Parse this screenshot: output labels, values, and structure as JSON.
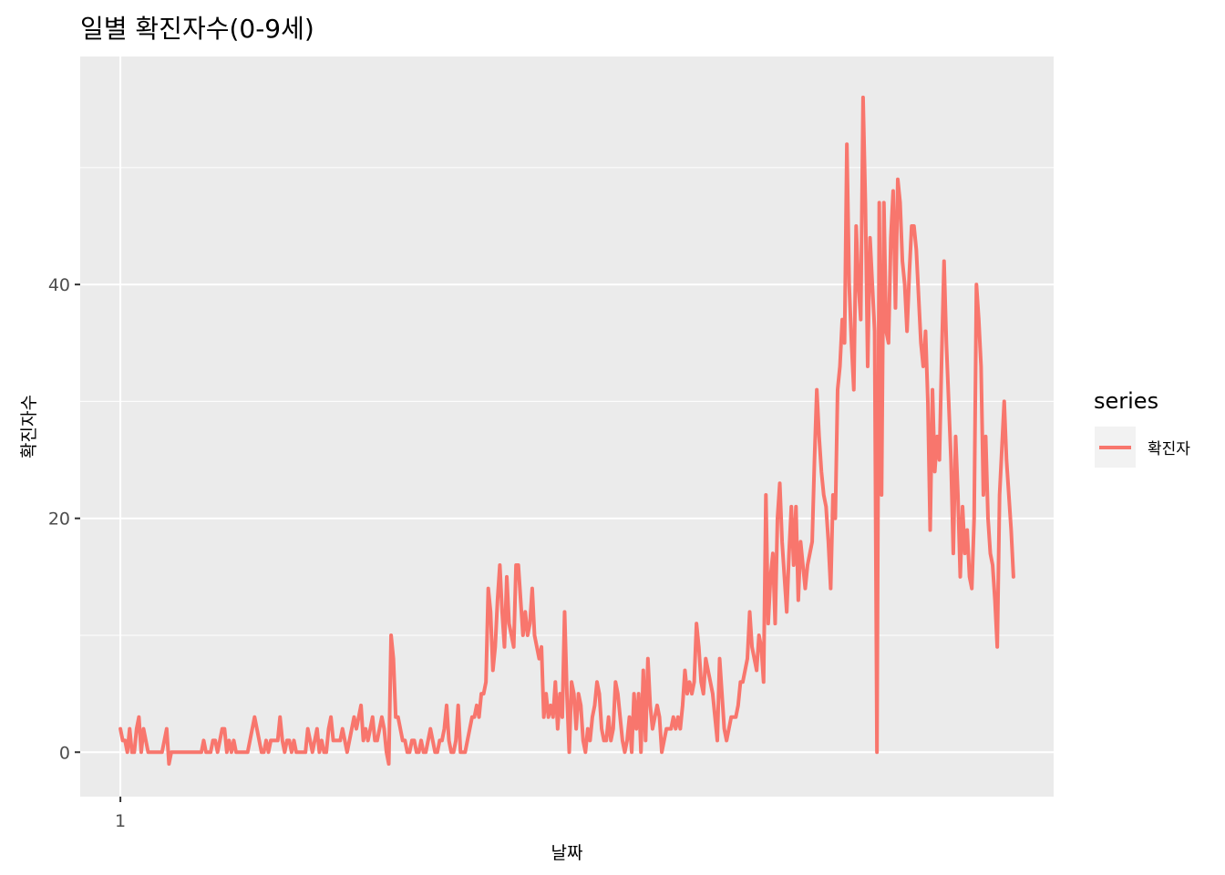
{
  "chart_data": {
    "type": "line",
    "title": "일별 확진자수(0-9세)",
    "xlabel": "날짜",
    "ylabel": "확진자수",
    "xlim": [
      1,
      332
    ],
    "ylim": [
      -3.8,
      59.5
    ],
    "x_ticks": [
      1
    ],
    "x_tick_labels": [
      "1"
    ],
    "y_ticks": [
      0,
      20,
      40
    ],
    "y_tick_labels": [
      "0",
      "20",
      "40"
    ],
    "grid": true,
    "legend": {
      "title": "series",
      "position": "right"
    },
    "series": [
      {
        "name": "확진자",
        "color": "#F8766D",
        "x_start": 1,
        "values": [
          2,
          1,
          1,
          0,
          2,
          0,
          0,
          2,
          3,
          0,
          2,
          1,
          0,
          0,
          0,
          0,
          0,
          0,
          0,
          1,
          2,
          -1,
          0,
          0,
          0,
          0,
          0,
          0,
          0,
          0,
          0,
          0,
          0,
          0,
          0,
          0,
          1,
          0,
          0,
          0,
          1,
          1,
          0,
          1,
          2,
          2,
          0,
          1,
          0,
          1,
          0,
          0,
          0,
          0,
          0,
          0,
          1,
          2,
          3,
          2,
          1,
          0,
          0,
          1,
          0,
          1,
          1,
          1,
          1,
          3,
          1,
          0,
          1,
          1,
          0,
          1,
          0,
          0,
          0,
          0,
          0,
          2,
          1,
          0,
          1,
          2,
          0,
          1,
          0,
          0,
          2,
          3,
          1,
          1,
          1,
          1,
          2,
          1,
          0,
          1,
          2,
          3,
          2,
          3,
          4,
          1,
          2,
          1,
          2,
          3,
          1,
          1,
          2,
          3,
          2,
          0,
          -1,
          10,
          8,
          3,
          3,
          2,
          1,
          1,
          0,
          0,
          1,
          1,
          0,
          0,
          1,
          0,
          0,
          1,
          2,
          1,
          0,
          0,
          1,
          1,
          2,
          4,
          1,
          0,
          0,
          1,
          4,
          0,
          0,
          0,
          1,
          2,
          3,
          3,
          4,
          3,
          5,
          5,
          6,
          14,
          12,
          7,
          9,
          13,
          16,
          12,
          9,
          15,
          11,
          10,
          9,
          16,
          16,
          13,
          10,
          12,
          10,
          11,
          14,
          10,
          9,
          8,
          9,
          3,
          5,
          3,
          4,
          3,
          6,
          2,
          5,
          3,
          12,
          5,
          0,
          6,
          5,
          2,
          5,
          4,
          1,
          0,
          2,
          1,
          3,
          4,
          6,
          5,
          2,
          1,
          1,
          3,
          1,
          2,
          6,
          5,
          3,
          1,
          0,
          1,
          3,
          0,
          5,
          2,
          5,
          0,
          7,
          1,
          8,
          4,
          2,
          3,
          4,
          3,
          0,
          1,
          2,
          2,
          2,
          3,
          2,
          3,
          2,
          4,
          7,
          5,
          6,
          5,
          6,
          11,
          9,
          6,
          5,
          8,
          7,
          6,
          5,
          3,
          1,
          8,
          5,
          2,
          1,
          2,
          3,
          3,
          3,
          4,
          6,
          6,
          7,
          8,
          12,
          9,
          8,
          7,
          10,
          9,
          6,
          22,
          11,
          15,
          17,
          11,
          20,
          23,
          18,
          15,
          12,
          17,
          21,
          16,
          21,
          13,
          18,
          16,
          14,
          16,
          17,
          18,
          25,
          31,
          27,
          24,
          22,
          21,
          18,
          14,
          22,
          20,
          31,
          33,
          37,
          35,
          52,
          40,
          35,
          31,
          45,
          40,
          37,
          56,
          47,
          33,
          44,
          40,
          36,
          0,
          47,
          22,
          47,
          36,
          35,
          44,
          48,
          38,
          49,
          47,
          42,
          40,
          36,
          41,
          45,
          45,
          43,
          39,
          35,
          33,
          36,
          30,
          19,
          31,
          24,
          27,
          25,
          34,
          42,
          35,
          30,
          25,
          17,
          27,
          22,
          15,
          21,
          17,
          19,
          15,
          14,
          20,
          40,
          37,
          33,
          22,
          27,
          20,
          17,
          16,
          13,
          9,
          22,
          26,
          30,
          25,
          22,
          19,
          15
        ]
      }
    ]
  }
}
